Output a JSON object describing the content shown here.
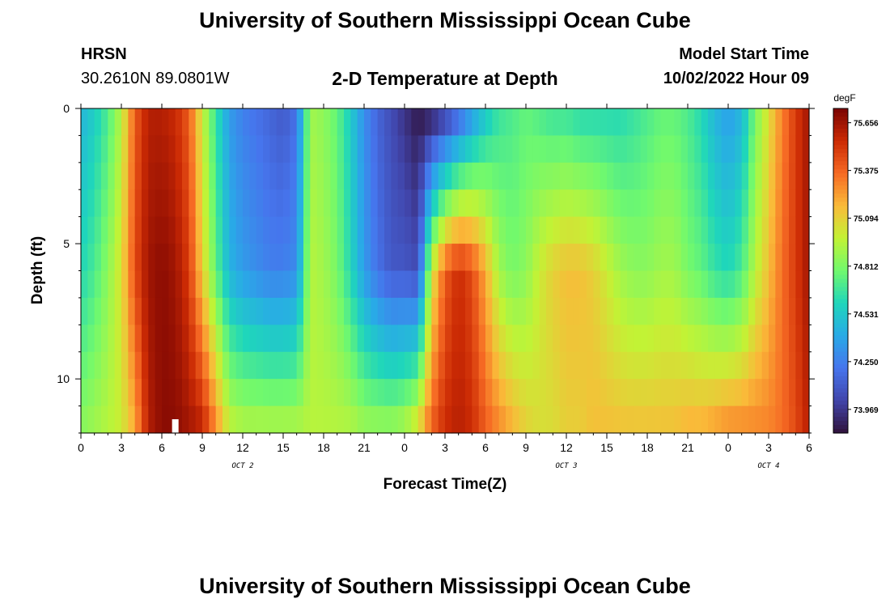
{
  "header": {
    "title": "University of Southern Mississippi Ocean Cube",
    "station": "HRSN",
    "coords": "30.2610N  89.0801W",
    "subtitle": "2-D Temperature at Depth",
    "start_label": "Model Start Time",
    "start_value": "10/02/2022 Hour 09"
  },
  "footer": {
    "title": "University of Southern Mississippi Ocean Cube"
  },
  "chart_data": {
    "type": "heatmap",
    "xlabel": "Forecast Time(Z)",
    "ylabel": "Depth (ft)",
    "x_range_hours": [
      0,
      54
    ],
    "ylim": [
      12,
      0
    ],
    "x_tick_labels": [
      "0",
      "3",
      "6",
      "9",
      "12",
      "15",
      "18",
      "21",
      "0",
      "3",
      "6",
      "9",
      "12",
      "15",
      "18",
      "21",
      "0",
      "3",
      "6"
    ],
    "y_tick_labels": [
      "0",
      "5",
      "10"
    ],
    "day_labels": [
      {
        "label": "OCT 2",
        "hour": 12
      },
      {
        "label": "OCT 3",
        "hour": 36
      },
      {
        "label": "OCT 4",
        "hour": 51
      }
    ],
    "colorbar": {
      "unit": "degF",
      "min": 73.83,
      "max": 75.74,
      "ticks": [
        "75.656",
        "75.375",
        "75.094",
        "74.812",
        "74.531",
        "74.250",
        "73.969"
      ]
    },
    "depth_levels": 12,
    "anchor_hours": [
      0,
      1,
      2,
      3,
      4,
      5,
      6,
      7,
      8,
      9,
      10,
      11,
      12,
      13,
      14,
      15,
      16,
      17,
      18,
      19,
      20,
      21,
      22,
      23,
      24,
      25,
      26,
      27,
      28,
      29,
      30,
      31,
      32,
      33,
      34,
      35,
      36,
      37,
      38,
      39,
      40,
      41,
      42,
      43,
      44,
      45,
      46,
      47,
      48,
      49,
      50,
      51,
      52,
      53,
      54
    ],
    "surface_temps": [
      74.45,
      74.55,
      74.7,
      74.95,
      75.4,
      75.6,
      75.6,
      75.55,
      75.4,
      75.0,
      74.65,
      74.35,
      74.25,
      74.2,
      74.15,
      74.1,
      74.2,
      74.9,
      74.85,
      74.75,
      74.55,
      74.3,
      74.15,
      74.05,
      73.95,
      73.85,
      73.85,
      73.95,
      74.1,
      74.3,
      74.5,
      74.65,
      74.7,
      74.75,
      74.7,
      74.65,
      74.65,
      74.6,
      74.6,
      74.6,
      74.6,
      74.65,
      74.7,
      74.75,
      74.75,
      74.7,
      74.6,
      74.45,
      74.35,
      74.45,
      74.8,
      75.05,
      75.3,
      75.5,
      75.65
    ],
    "bottom_temps": [
      74.85,
      74.9,
      74.95,
      75.0,
      75.2,
      75.6,
      75.7,
      75.7,
      75.65,
      75.6,
      75.3,
      75.0,
      74.95,
      74.95,
      74.95,
      74.95,
      74.95,
      74.95,
      74.95,
      74.95,
      74.95,
      74.9,
      74.9,
      74.9,
      74.95,
      75.1,
      75.4,
      75.55,
      75.6,
      75.55,
      75.4,
      75.3,
      75.2,
      75.1,
      75.05,
      75.05,
      75.1,
      75.1,
      75.15,
      75.15,
      75.15,
      75.15,
      75.15,
      75.15,
      75.15,
      75.2,
      75.2,
      75.25,
      75.3,
      75.3,
      75.3,
      75.3,
      75.35,
      75.45,
      75.6
    ],
    "profile_mid_temps": [
      74.6,
      74.7,
      74.85,
      75.05,
      75.45,
      75.65,
      75.7,
      75.65,
      75.5,
      75.1,
      74.75,
      74.45,
      74.35,
      74.3,
      74.25,
      74.25,
      74.3,
      74.95,
      74.9,
      74.8,
      74.6,
      74.35,
      74.2,
      74.1,
      74.1,
      74.05,
      75.0,
      75.4,
      75.55,
      75.45,
      75.2,
      74.9,
      74.8,
      74.85,
      75.0,
      75.1,
      75.15,
      75.15,
      75.1,
      75.0,
      74.9,
      74.85,
      74.85,
      74.9,
      74.9,
      74.8,
      74.75,
      74.65,
      74.6,
      74.7,
      74.95,
      75.15,
      75.35,
      75.5,
      75.65
    ],
    "marker_hour": 7
  }
}
